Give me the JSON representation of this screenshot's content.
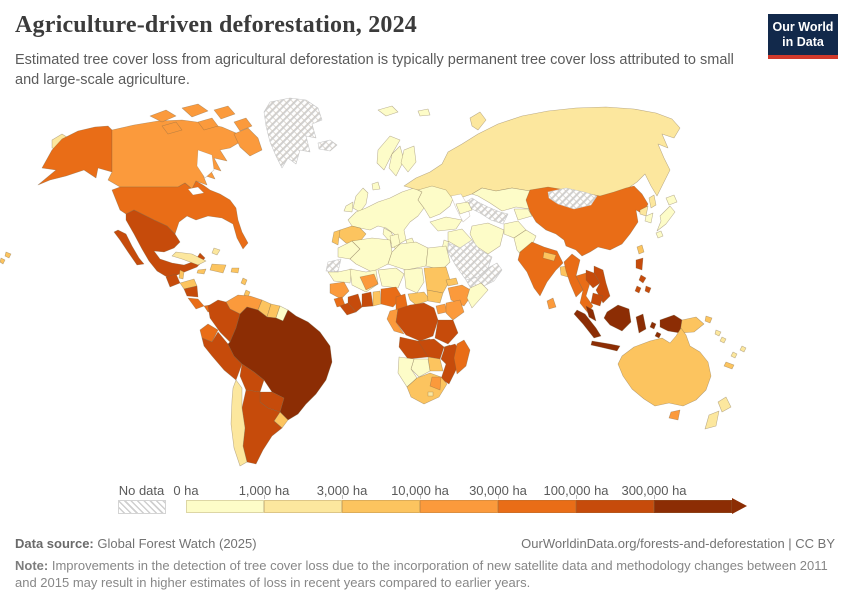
{
  "header": {
    "title": "Agriculture-driven deforestation, 2024",
    "subtitle": "Estimated tree cover loss from agricultural deforestation is typically permanent tree cover loss attributed to small and large-scale agriculture.",
    "logo_line1": "Our World",
    "logo_line2": "in Data",
    "logo_bg_color": "#12294b",
    "logo_accent_color": "#d1392b"
  },
  "chart_data": {
    "type": "heatmap",
    "subtype": "world-choropleth",
    "title": "Agriculture-driven deforestation, 2024",
    "unit": "ha",
    "legend_position": "bottom",
    "no_data_label": "No data",
    "bin_edge_labels": [
      "0 ha",
      "1,000 ha",
      "3,000 ha",
      "10,000 ha",
      "30,000 ha",
      "100,000 ha",
      "300,000 ha"
    ],
    "bin_range_labels": [
      "0-1,000 ha",
      "1,000-3,000 ha",
      "3,000-10,000 ha",
      "10,000-30,000 ha",
      "30,000-100,000 ha",
      "100,000-300,000 ha",
      "300,000+ ha"
    ],
    "bin_colors": [
      "#fdfcc8",
      "#fce79e",
      "#fcc45f",
      "#fb9a3c",
      "#e96d17",
      "#c64b0b",
      "#8c2d04"
    ],
    "no_data_hatch_color": "#cfcfcf",
    "countries": {
      "chukotka_russia": 1,
      "alaska_usa": 4,
      "canada": 3,
      "greenland": "no_data",
      "iceland": "no_data",
      "svalbard": 0,
      "usa": 4,
      "hawaii_usa": 2,
      "baja_mexico": 5,
      "mexico": 5,
      "guatemala": 5,
      "belize": 2,
      "honduras": 2,
      "nicaragua": 5,
      "costa_rica": 4,
      "panama": 4,
      "cuba": 1,
      "jamaica": 2,
      "hispaniola": 2,
      "puerto_rico": 2,
      "lesser_antilles": 2,
      "bahamas": 1,
      "trinidad_tobago": 3,
      "venezuela": 3,
      "colombia": 5,
      "guyana": 2,
      "suriname": 2,
      "french_guiana": 0,
      "ecuador": 4,
      "peru": 5,
      "brazil": 6,
      "bolivia": 5,
      "paraguay": 5,
      "uruguay": 2,
      "argentina": 5,
      "chile": 1,
      "united_kingdom": 0,
      "ireland": 0,
      "norway": 0,
      "sweden": 0,
      "finland": 0,
      "denmark": 0,
      "europe_mainland": 0,
      "italy": 0,
      "greece": 0,
      "spain": 2,
      "portugal": 2,
      "eastern_europe": 0,
      "russia": 1,
      "novaya_zemlya_russia": 1,
      "sakhalin_russia": 1,
      "kazakhstan": 0,
      "turkmenistan_uzbekistan": "no_data",
      "kyrgyzstan_tajikistan": 0,
      "caucasus": 0,
      "turkey": 0,
      "syria_iraq": 0,
      "iran": 0,
      "afghanistan": 0,
      "pakistan": 0,
      "saudi_arabia": "no_data",
      "yemen_oman": "no_data",
      "jordan_israel": 0,
      "morocco": 0,
      "western_sahara": "no_data",
      "algeria": 0,
      "tunisia": 0,
      "libya": 0,
      "egypt": 0,
      "mauritania": 0,
      "mali": 0,
      "burkina_faso": 3,
      "niger": 0,
      "chad": 0,
      "sudan": 2,
      "eritrea": 2,
      "ethiopia": 3,
      "somalia": 0,
      "senegal_guinea": 3,
      "sierra_leone": 4,
      "liberia": 5,
      "ivory_coast": 5,
      "ghana": 5,
      "togo_benin": 2,
      "nigeria": 4,
      "cameroon": 4,
      "central_african_republic": 2,
      "south_sudan": 2,
      "uganda": 3,
      "kenya": 3,
      "gabon_congo": 3,
      "dr_congo": 5,
      "tanzania": 5,
      "angola": 5,
      "zambia": 5,
      "malawi": 4,
      "mozambique": 5,
      "zimbabwe": 2,
      "botswana": 0,
      "namibia": 0,
      "south_africa": 2,
      "south_africa_east": 3,
      "lesotho": 1,
      "madagascar": 4,
      "india": 4,
      "nepal": 2,
      "bangladesh": 2,
      "sri_lanka": 3,
      "myanmar": 4,
      "thailand": 4,
      "laos": 5,
      "vietnam": 5,
      "cambodia": 5,
      "peninsular_malaysia": 6,
      "china": 4,
      "mongolia": "no_data",
      "taiwan": 2,
      "north_korea": 1,
      "south_korea": 0,
      "japan": 0,
      "philippines": 5,
      "sumatra_indonesia": 6,
      "java_indonesia": 6,
      "borneo": 6,
      "sulawesi_indonesia": 6,
      "maluku_indonesia": 6,
      "timor": 6,
      "west_papua_indonesia": 6,
      "papua_new_guinea": 2,
      "new_britain_png": 2,
      "solomon_islands": 1,
      "vanuatu": 1,
      "fiji": 1,
      "new_caledonia": 2,
      "australia": 2,
      "tasmania_australia": 3,
      "new_zealand": 1
    }
  },
  "footer": {
    "data_source_label": "Data source:",
    "data_source": "Global Forest Watch (2025)",
    "attribution": "OurWorldinData.org/forests-and-deforestation | CC BY",
    "note_label": "Note:",
    "note": "Improvements in the detection of tree cover loss due to the incorporation of new satellite data and methodology changes between 2011 and 2015 may result in higher estimates of loss in recent years compared to earlier years."
  }
}
